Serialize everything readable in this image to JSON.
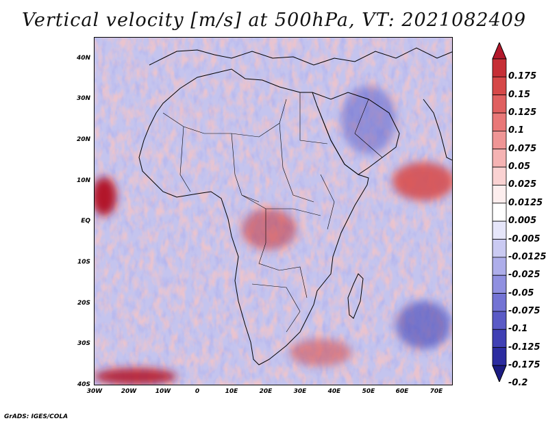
{
  "title": "Vertical velocity [m/s] at 500hPa, VT: 2021082409",
  "credit": "GrADS: IGES/COLA",
  "lat_labels": [
    "40N",
    "30N",
    "20N",
    "10N",
    "EQ",
    "10S",
    "20S",
    "30S",
    "40S"
  ],
  "lon_labels": [
    "30W",
    "20W",
    "10W",
    "0",
    "10E",
    "20E",
    "30E",
    "40E",
    "50E",
    "60E",
    "70E"
  ],
  "colorbar": {
    "labels": [
      "0.175",
      "0.15",
      "0.125",
      "0.1",
      "0.075",
      "0.05",
      "0.025",
      "0.0125",
      "0.005",
      "-0.005",
      "-0.0125",
      "-0.025",
      "-0.05",
      "-0.075",
      "-0.1",
      "-0.125",
      "-0.175",
      "-0.2"
    ],
    "colors": [
      "#b2182b",
      "#c62f36",
      "#d64848",
      "#e06060",
      "#e97878",
      "#ef9595",
      "#f5b3b3",
      "#fad2d2",
      "#fdeeee",
      "#ffffff",
      "#e6e6fa",
      "#cacaf2",
      "#aeaeea",
      "#9090e0",
      "#7373d4",
      "#5a5ac6",
      "#4040b4",
      "#2c2ca0",
      "#1c1c82"
    ]
  },
  "map": {
    "domain": {
      "lon_min": -30,
      "lon_max": 75,
      "lat_min": -40,
      "lat_max": 45
    },
    "field_colors": {
      "positive": "#e06060",
      "negative": "#7373d4",
      "neutral": "#ffffff"
    }
  }
}
